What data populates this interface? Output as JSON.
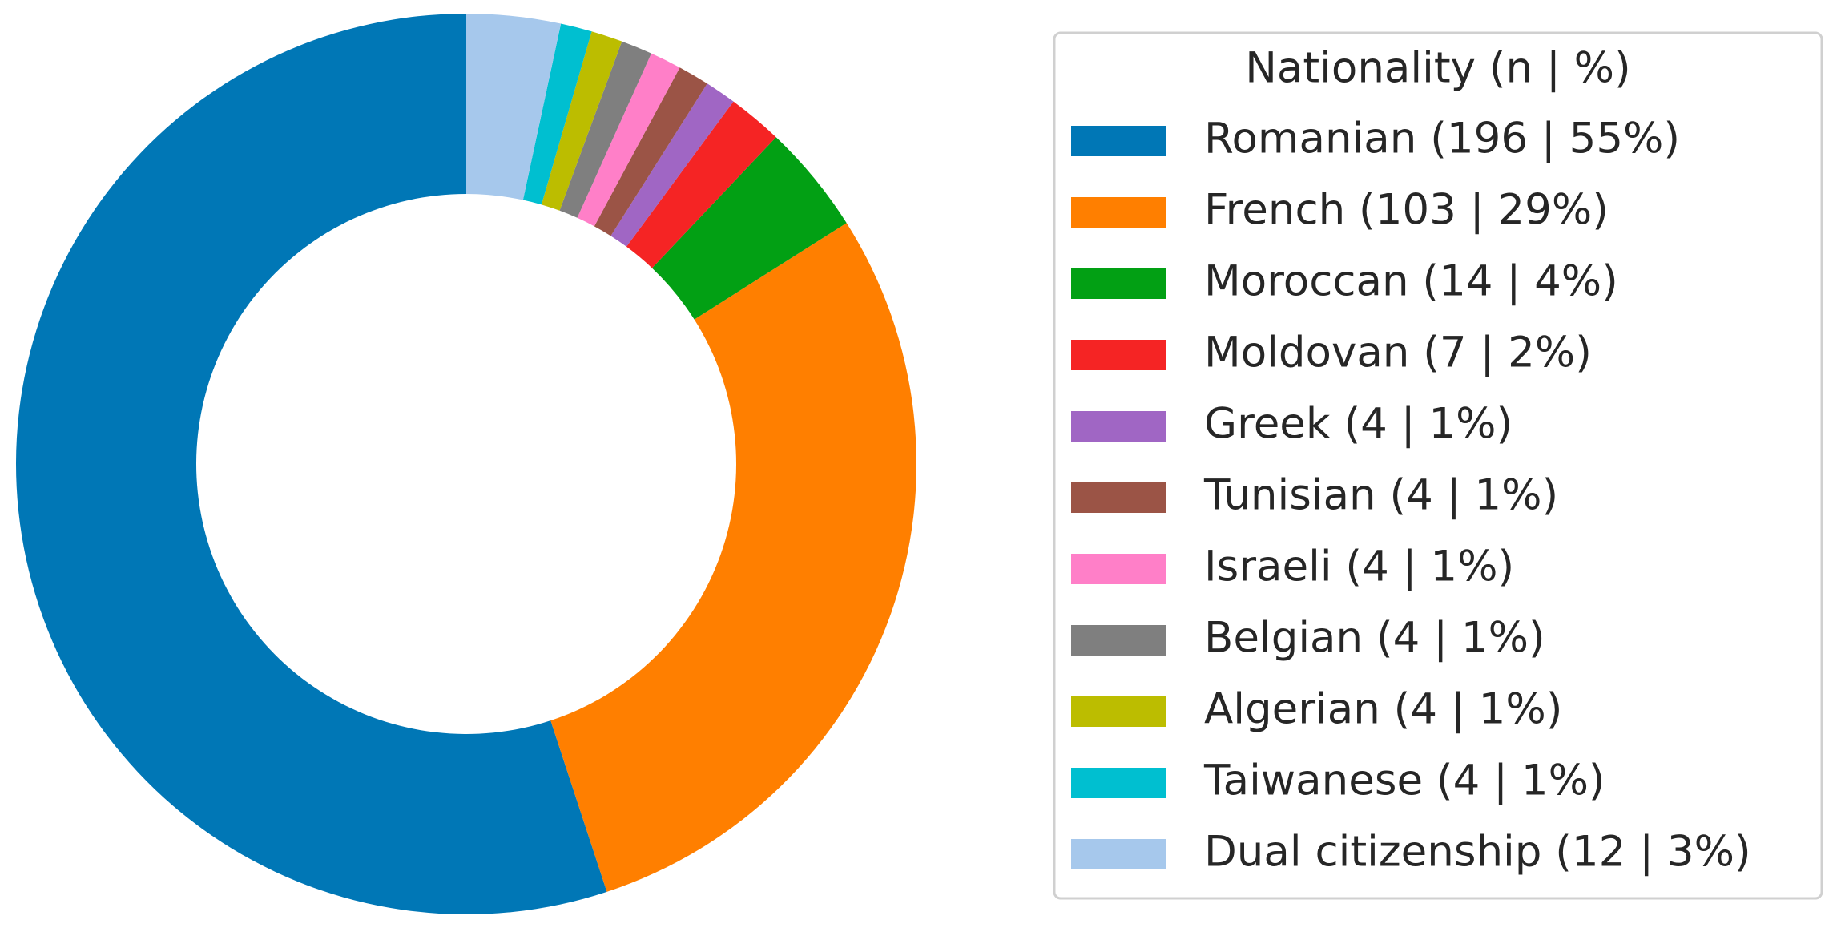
{
  "chart_data": {
    "type": "donut",
    "legend_title": "Nationality (n | %)",
    "categories": [
      "Romanian (196 | 55%)",
      "French (103 | 29%)",
      "Moroccan (14 | 4%)",
      "Moldovan (7 | 2%)",
      "Greek (4 | 1%)",
      "Tunisian (4 | 1%)",
      "Israeli (4 | 1%)",
      "Belgian (4 | 1%)",
      "Algerian (4 | 1%)",
      "Taiwanese (4 | 1%)",
      "Dual citizenship (12 | 3%)"
    ],
    "values": [
      196,
      103,
      14,
      7,
      4,
      4,
      4,
      4,
      4,
      4,
      12
    ],
    "colors": [
      "#0077b6",
      "#ff7f00",
      "#02a014",
      "#f52424",
      "#a066c4",
      "#9b5446",
      "#ff7fc8",
      "#7f7f7f",
      "#bcbd00",
      "#00bfd0",
      "#a6c8ec"
    ],
    "legend": "right"
  }
}
